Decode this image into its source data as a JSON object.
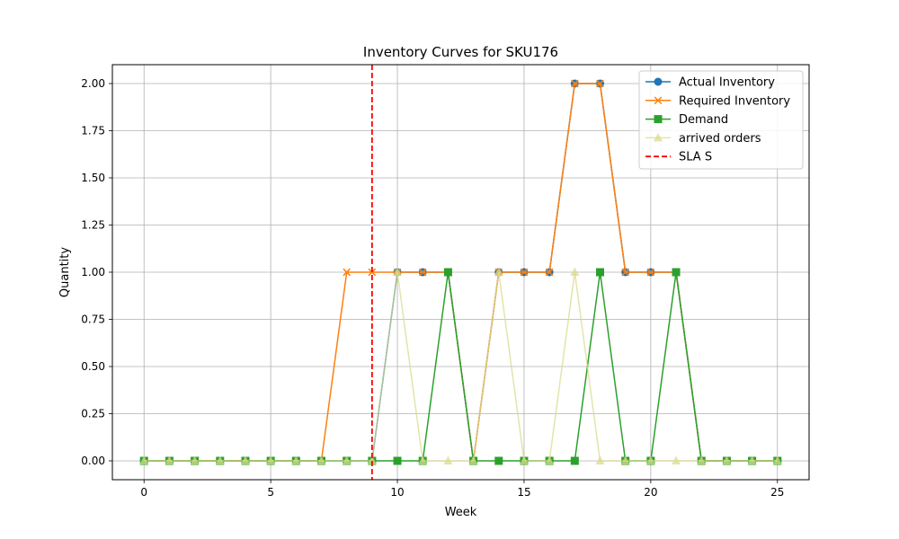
{
  "chart_data": {
    "type": "line",
    "title": "Inventory Curves for SKU176",
    "xlabel": "Week",
    "ylabel": "Quantity",
    "xlim": [
      -1.25,
      26.25
    ],
    "ylim": [
      -0.1,
      2.1
    ],
    "xticks": [
      0,
      5,
      10,
      15,
      20,
      25
    ],
    "yticks": [
      0.0,
      0.25,
      0.5,
      0.75,
      1.0,
      1.25,
      1.5,
      1.75,
      2.0
    ],
    "ytick_labels": [
      "0.00",
      "0.25",
      "0.50",
      "0.75",
      "1.00",
      "1.25",
      "1.50",
      "1.75",
      "2.00"
    ],
    "grid": true,
    "legend_position": "top-right",
    "x": [
      0,
      1,
      2,
      3,
      4,
      5,
      6,
      7,
      8,
      9,
      10,
      11,
      12,
      13,
      14,
      15,
      16,
      17,
      18,
      19,
      20,
      21,
      22,
      23,
      24,
      25
    ],
    "series": [
      {
        "name": "Actual Inventory",
        "color": "#1f77b4",
        "marker": "circle",
        "values": [
          0,
          0,
          0,
          0,
          0,
          0,
          0,
          0,
          0,
          0,
          1,
          1,
          1,
          0,
          1,
          1,
          1,
          2,
          2,
          1,
          1,
          1,
          0,
          0,
          0,
          0
        ]
      },
      {
        "name": "Required Inventory",
        "color": "#ff7f0e",
        "marker": "x",
        "values": [
          0,
          0,
          0,
          0,
          0,
          0,
          0,
          0,
          1,
          1,
          1,
          1,
          1,
          0,
          1,
          1,
          1,
          2,
          2,
          1,
          1,
          1,
          0,
          0,
          0,
          0
        ]
      },
      {
        "name": "Demand",
        "color": "#2ca02c",
        "marker": "square",
        "values": [
          0,
          0,
          0,
          0,
          0,
          0,
          0,
          0,
          0,
          0,
          0,
          0,
          1,
          0,
          0,
          0,
          0,
          0,
          1,
          0,
          0,
          1,
          0,
          0,
          0,
          0
        ]
      },
      {
        "name": "arrived orders",
        "color": "#dbdb8d",
        "marker": "triangle",
        "alpha": 0.75,
        "values": [
          0,
          0,
          0,
          0,
          0,
          0,
          0,
          0,
          0,
          0,
          1,
          0,
          0,
          0,
          1,
          0,
          0,
          1,
          0,
          0,
          0,
          0,
          0,
          0,
          0,
          0
        ]
      }
    ],
    "vlines": [
      {
        "name": "SLA S",
        "x": 9,
        "color": "#ff0000",
        "style": "dashed"
      }
    ]
  }
}
